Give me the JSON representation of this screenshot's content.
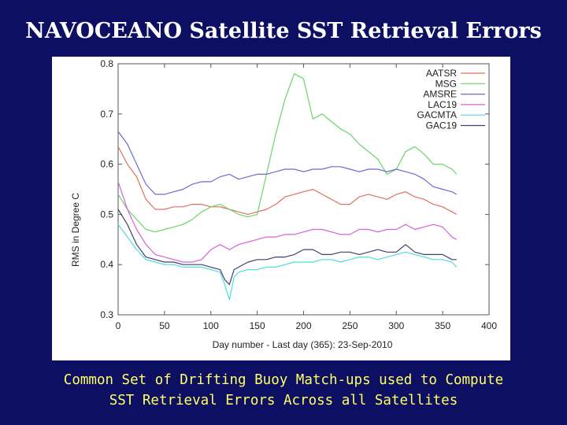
{
  "slide": {
    "title": "NAVOCEANO Satellite SST Retrieval Errors",
    "caption_line1": "Common Set of Drifting Buoy Match-ups used to Compute",
    "caption_line2": "SST Retrieval Errors Across all Satellites",
    "background_color": "#0d0f63",
    "title_color": "#ffffff",
    "caption_color": "#ffff66"
  },
  "chart_data": {
    "type": "line",
    "title": "",
    "xlabel": "Day number - Last day (365): 23-Sep-2010",
    "ylabel": "RMS in Degree C",
    "xlim": [
      0,
      400
    ],
    "ylim": [
      0.3,
      0.8
    ],
    "xticks": [
      "0",
      "50",
      "100",
      "150",
      "200",
      "250",
      "300",
      "350",
      "400"
    ],
    "yticks": [
      "0.3",
      "0.4",
      "0.5",
      "0.6",
      "0.7",
      "0.8"
    ],
    "grid": false,
    "legend_position": "top-right",
    "series": [
      {
        "name": "AATSR",
        "color": "#e07060",
        "x": [
          0,
          10,
          20,
          30,
          40,
          50,
          60,
          70,
          80,
          90,
          100,
          110,
          120,
          130,
          140,
          150,
          160,
          170,
          180,
          190,
          200,
          210,
          220,
          230,
          240,
          250,
          260,
          270,
          280,
          290,
          300,
          310,
          320,
          330,
          340,
          350,
          360,
          365
        ],
        "y": [
          0.635,
          0.6,
          0.575,
          0.53,
          0.51,
          0.51,
          0.515,
          0.515,
          0.52,
          0.52,
          0.515,
          0.515,
          0.51,
          0.505,
          0.5,
          0.505,
          0.51,
          0.52,
          0.535,
          0.54,
          0.545,
          0.55,
          0.54,
          0.53,
          0.52,
          0.52,
          0.535,
          0.54,
          0.535,
          0.53,
          0.54,
          0.545,
          0.535,
          0.53,
          0.52,
          0.515,
          0.505,
          0.5
        ]
      },
      {
        "name": "MSG",
        "color": "#6ad46a",
        "x": [
          0,
          10,
          20,
          30,
          40,
          50,
          60,
          70,
          80,
          90,
          100,
          110,
          120,
          130,
          140,
          150,
          160,
          170,
          180,
          190,
          200,
          210,
          220,
          230,
          240,
          250,
          260,
          270,
          280,
          290,
          300,
          310,
          320,
          330,
          340,
          350,
          360,
          365
        ],
        "y": [
          0.54,
          0.51,
          0.49,
          0.47,
          0.465,
          0.47,
          0.475,
          0.48,
          0.49,
          0.505,
          0.515,
          0.52,
          0.51,
          0.5,
          0.495,
          0.5,
          0.58,
          0.66,
          0.73,
          0.78,
          0.77,
          0.69,
          0.7,
          0.685,
          0.67,
          0.66,
          0.64,
          0.625,
          0.61,
          0.58,
          0.59,
          0.625,
          0.635,
          0.62,
          0.6,
          0.6,
          0.59,
          0.58
        ]
      },
      {
        "name": "AMSRE",
        "color": "#6a6ad4",
        "x": [
          0,
          10,
          20,
          30,
          40,
          50,
          60,
          70,
          80,
          90,
          100,
          110,
          120,
          130,
          140,
          150,
          160,
          170,
          180,
          190,
          200,
          210,
          220,
          230,
          240,
          250,
          260,
          270,
          280,
          290,
          300,
          310,
          320,
          330,
          340,
          350,
          360,
          365
        ],
        "y": [
          0.665,
          0.64,
          0.6,
          0.56,
          0.54,
          0.54,
          0.545,
          0.55,
          0.56,
          0.565,
          0.565,
          0.575,
          0.58,
          0.57,
          0.575,
          0.58,
          0.58,
          0.585,
          0.59,
          0.59,
          0.585,
          0.59,
          0.59,
          0.595,
          0.595,
          0.59,
          0.585,
          0.59,
          0.59,
          0.585,
          0.59,
          0.585,
          0.58,
          0.57,
          0.555,
          0.55,
          0.545,
          0.54
        ]
      },
      {
        "name": "LAC19",
        "color": "#d860d8",
        "x": [
          0,
          10,
          20,
          30,
          40,
          50,
          60,
          70,
          80,
          90,
          100,
          110,
          120,
          130,
          140,
          150,
          160,
          170,
          180,
          190,
          200,
          210,
          220,
          230,
          240,
          250,
          260,
          270,
          280,
          290,
          300,
          310,
          320,
          330,
          340,
          350,
          360,
          365
        ],
        "y": [
          0.565,
          0.51,
          0.47,
          0.44,
          0.42,
          0.415,
          0.41,
          0.405,
          0.405,
          0.41,
          0.43,
          0.44,
          0.43,
          0.44,
          0.445,
          0.45,
          0.455,
          0.455,
          0.46,
          0.46,
          0.465,
          0.47,
          0.47,
          0.465,
          0.46,
          0.46,
          0.47,
          0.47,
          0.465,
          0.47,
          0.47,
          0.48,
          0.47,
          0.475,
          0.48,
          0.475,
          0.455,
          0.45
        ]
      },
      {
        "name": "GACMTA",
        "color": "#4fdcdc",
        "x": [
          0,
          10,
          20,
          30,
          40,
          50,
          60,
          70,
          80,
          90,
          100,
          110,
          115,
          120,
          125,
          130,
          140,
          150,
          160,
          170,
          180,
          190,
          200,
          210,
          220,
          230,
          240,
          250,
          260,
          270,
          280,
          290,
          300,
          310,
          320,
          330,
          340,
          350,
          360,
          365
        ],
        "y": [
          0.48,
          0.455,
          0.43,
          0.41,
          0.405,
          0.4,
          0.4,
          0.395,
          0.395,
          0.395,
          0.39,
          0.385,
          0.36,
          0.33,
          0.375,
          0.385,
          0.39,
          0.39,
          0.395,
          0.395,
          0.4,
          0.405,
          0.405,
          0.405,
          0.41,
          0.41,
          0.405,
          0.41,
          0.415,
          0.415,
          0.41,
          0.415,
          0.42,
          0.425,
          0.42,
          0.415,
          0.41,
          0.41,
          0.405,
          0.395
        ]
      },
      {
        "name": "GAC19",
        "color": "#404070",
        "x": [
          0,
          10,
          20,
          30,
          40,
          50,
          60,
          70,
          80,
          90,
          100,
          110,
          115,
          120,
          125,
          130,
          140,
          150,
          160,
          170,
          180,
          190,
          200,
          210,
          220,
          230,
          240,
          250,
          260,
          270,
          280,
          290,
          300,
          310,
          320,
          330,
          340,
          350,
          360,
          365
        ],
        "y": [
          0.51,
          0.48,
          0.44,
          0.415,
          0.41,
          0.405,
          0.405,
          0.4,
          0.4,
          0.4,
          0.395,
          0.39,
          0.37,
          0.36,
          0.39,
          0.395,
          0.405,
          0.41,
          0.41,
          0.415,
          0.415,
          0.42,
          0.43,
          0.43,
          0.42,
          0.42,
          0.425,
          0.425,
          0.42,
          0.425,
          0.43,
          0.425,
          0.425,
          0.44,
          0.425,
          0.42,
          0.42,
          0.42,
          0.41,
          0.41
        ]
      }
    ]
  }
}
